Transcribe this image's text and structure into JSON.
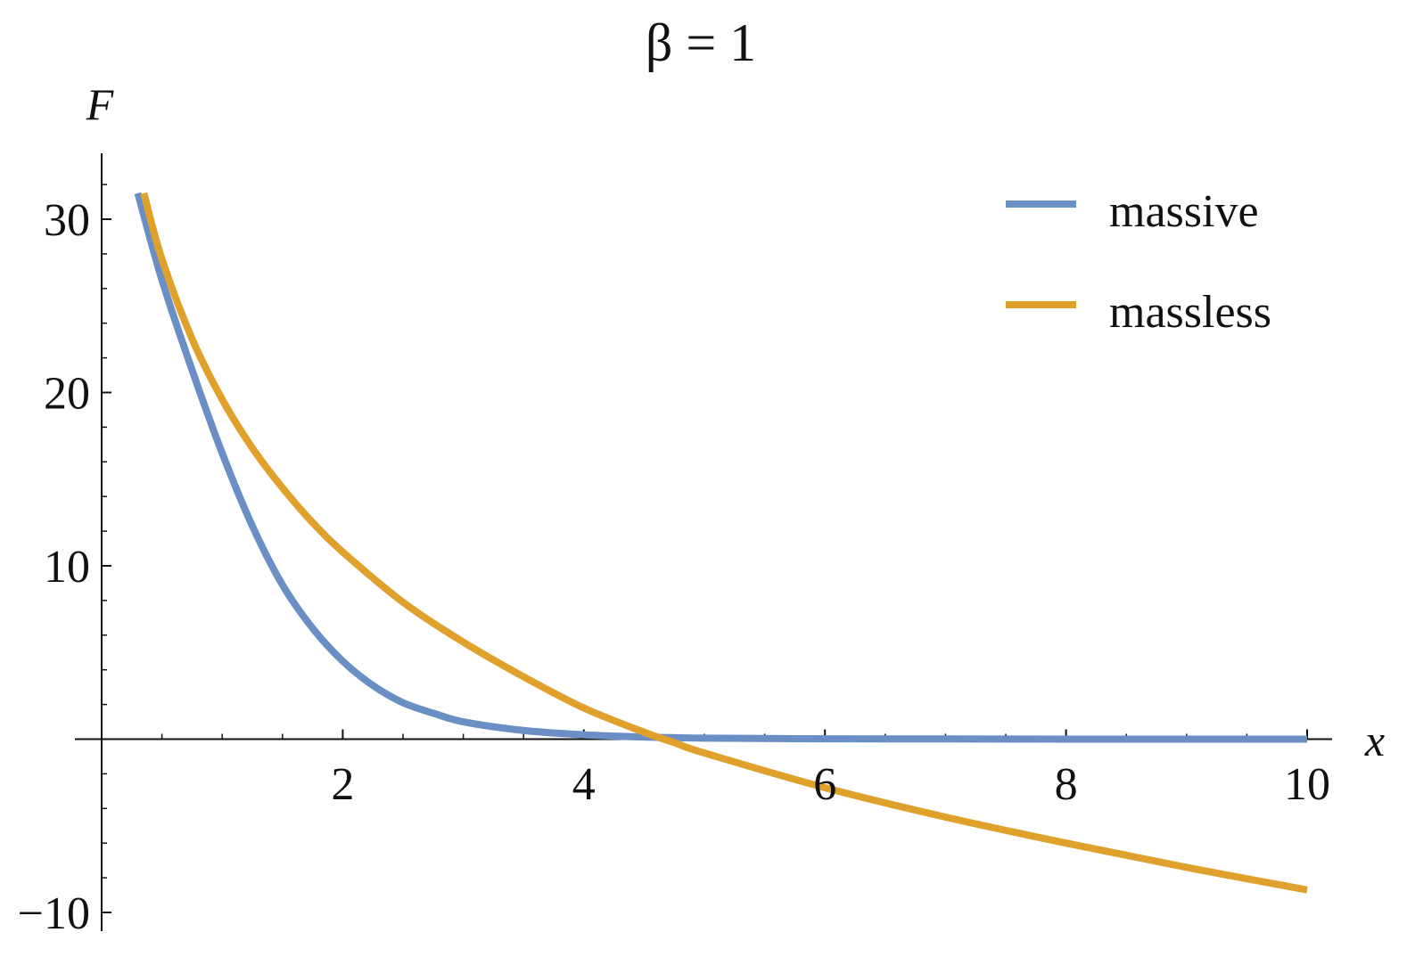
{
  "chart_data": {
    "type": "line",
    "title": "β = 1",
    "xlabel": "x",
    "ylabel": "F",
    "xlim": [
      0,
      10.2
    ],
    "ylim": [
      -11,
      33.5
    ],
    "x_major_ticks": [
      2,
      4,
      6,
      8,
      10
    ],
    "x_tick_labels": [
      "2",
      "4",
      "6",
      "8",
      "10"
    ],
    "y_major_ticks": [
      -10,
      10,
      20,
      30
    ],
    "y_tick_labels": [
      "−10",
      "10",
      "20",
      "30"
    ],
    "grid": false,
    "legend_position": "top-right",
    "series": [
      {
        "name": "massive",
        "color": "#6a8fc4",
        "x": [
          0.3,
          0.5,
          0.75,
          1.0,
          1.25,
          1.5,
          1.75,
          2.0,
          2.25,
          2.5,
          2.75,
          3.0,
          3.5,
          4.0,
          4.5,
          5.0,
          6.0,
          7.0,
          8.0,
          9.0,
          10.0
        ],
        "y": [
          31.5,
          26.5,
          21.3,
          16.5,
          12.3,
          8.9,
          6.4,
          4.5,
          3.1,
          2.1,
          1.5,
          1.0,
          0.5,
          0.25,
          0.12,
          0.06,
          0.02,
          0.01,
          0.0,
          0.0,
          0.0
        ]
      },
      {
        "name": "massless",
        "color": "#e0a12c",
        "x": [
          0.35,
          0.5,
          0.75,
          1.0,
          1.25,
          1.5,
          1.75,
          2.0,
          2.5,
          3.0,
          3.5,
          4.0,
          4.5,
          4.75,
          5.0,
          6.0,
          7.0,
          8.0,
          9.0,
          10.0
        ],
        "y": [
          31.5,
          27.7,
          23.1,
          19.6,
          16.8,
          14.5,
          12.5,
          10.8,
          7.9,
          5.6,
          3.6,
          1.8,
          0.4,
          -0.2,
          -0.8,
          -2.8,
          -4.5,
          -6.0,
          -7.4,
          -8.7
        ]
      }
    ]
  }
}
